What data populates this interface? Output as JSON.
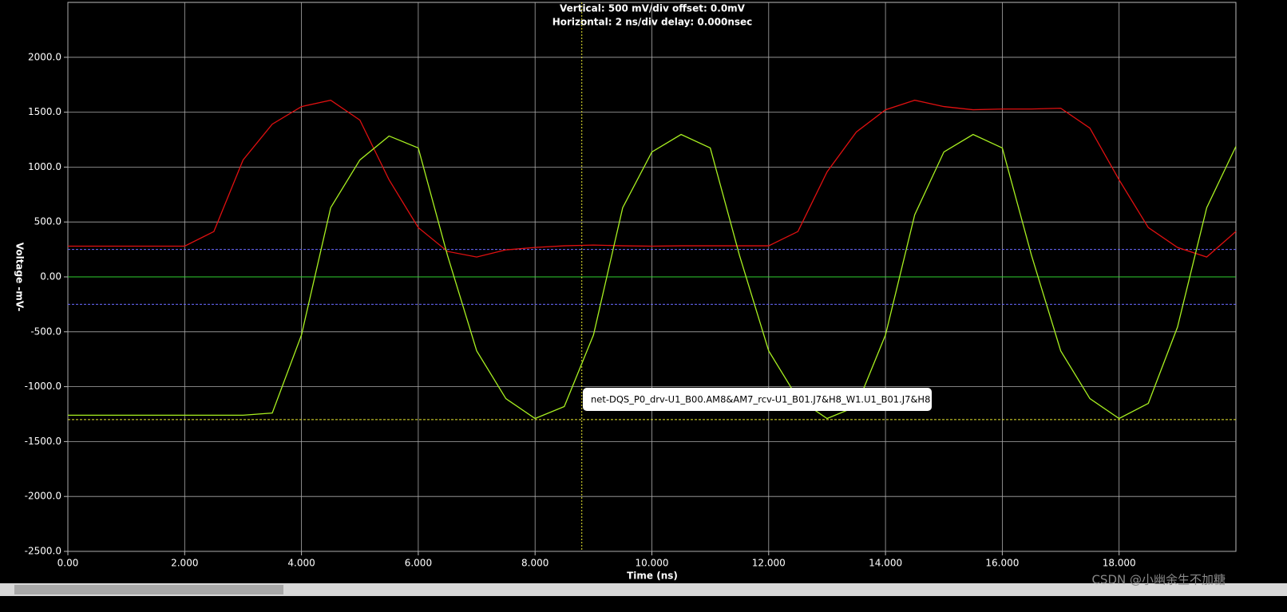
{
  "chart_data": {
    "type": "line",
    "header": [
      "Vertical: 500 mV/div  offset: 0.0mV",
      "Horizontal: 2 ns/div  delay: 0.000nsec"
    ],
    "x_label": "Time  (ns)",
    "y_label": "Voltage  -mV-",
    "x": [
      0,
      0.5,
      1,
      1.5,
      2,
      2.5,
      3,
      3.5,
      4,
      4.5,
      5,
      5.5,
      6,
      6.5,
      7,
      7.5,
      8,
      8.5,
      9,
      9.5,
      10,
      10.5,
      11,
      11.5,
      12,
      12.5,
      13,
      13.5,
      14,
      14.5,
      15,
      15.5,
      16,
      16.5,
      17,
      17.5,
      18,
      18.5,
      19,
      19.5,
      20
    ],
    "series": [
      {
        "color": "#e01010",
        "values": [
          280,
          280,
          280,
          280,
          280,
          413,
          1065,
          1391,
          1551,
          1609,
          1428,
          884,
          449,
          232,
          181,
          246,
          268,
          283,
          290,
          283,
          280,
          283,
          283,
          283,
          283,
          413,
          957,
          1319,
          1522,
          1609,
          1551,
          1522,
          1529,
          1529,
          1536,
          1355,
          884,
          449,
          268,
          181,
          413
        ]
      },
      {
        "color": "#a8f020",
        "values": [
          -1260,
          -1260,
          -1260,
          -1260,
          -1260,
          -1260,
          -1260,
          -1240,
          -529,
          630,
          1065,
          1283,
          1174,
          196,
          -674,
          -1109,
          -1290,
          -1181,
          -529,
          630,
          1138,
          1297,
          1174,
          196,
          -674,
          -1109,
          -1290,
          -1181,
          -529,
          565,
          1138,
          1297,
          1174,
          196,
          -674,
          -1109,
          -1290,
          -1152,
          -457,
          630,
          1188
        ]
      }
    ],
    "hlines": [
      {
        "value": 250,
        "color": "#6a6aff"
      },
      {
        "value": -250,
        "color": "#6a6aff"
      },
      {
        "value": -1300,
        "color": "#e8e830"
      },
      {
        "value": 0,
        "color": "#30d030"
      }
    ],
    "cursor_x": 8.8,
    "tooltip": "net-DQS_P0_drv-U1_B00.AM8&AM7_rcv-U1_B01.J7&H8_W1.U1_B01.J7&H8",
    "watermark": "CSDN @小幽余生不加糖",
    "xlim": [
      0,
      20
    ],
    "ylim": [
      -2500,
      2500
    ],
    "xticks": [
      {
        "value": 0,
        "label": "0.00"
      },
      {
        "value": 2,
        "label": "2.000"
      },
      {
        "value": 4,
        "label": "4.000"
      },
      {
        "value": 6,
        "label": "6.000"
      },
      {
        "value": 8,
        "label": "8.000"
      },
      {
        "value": 10,
        "label": "10.000"
      },
      {
        "value": 12,
        "label": "12.000"
      },
      {
        "value": 14,
        "label": "14.000"
      },
      {
        "value": 16,
        "label": "16.000"
      },
      {
        "value": 18,
        "label": "18.000"
      }
    ],
    "yticks": [
      {
        "value": -2500,
        "label": "-2500.0"
      },
      {
        "value": -2000,
        "label": "-2000.0"
      },
      {
        "value": -1500,
        "label": "-1500.0"
      },
      {
        "value": -1000,
        "label": "-1000.0"
      },
      {
        "value": -500,
        "label": "-500.0"
      },
      {
        "value": 0,
        "label": "0.00"
      },
      {
        "value": 500,
        "label": "500.0"
      },
      {
        "value": 1000,
        "label": "1000.0"
      },
      {
        "value": 1500,
        "label": "1500.0"
      },
      {
        "value": 2000,
        "label": "2000.0"
      }
    ],
    "grid": true
  }
}
